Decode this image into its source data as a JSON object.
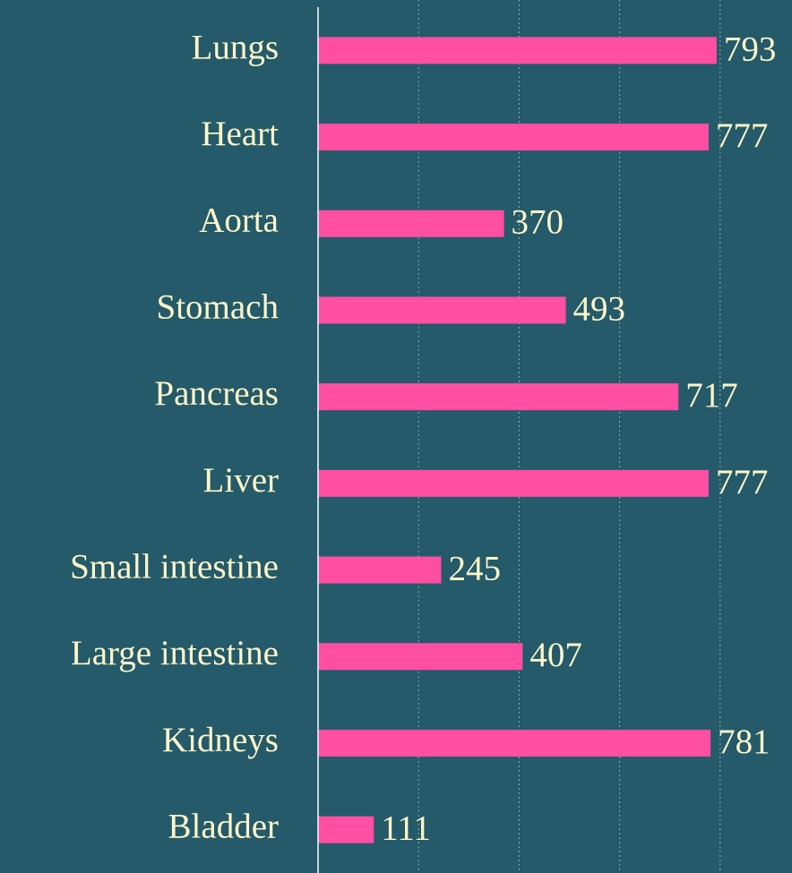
{
  "chart_data": {
    "type": "barh",
    "categories": [
      "Lungs",
      "Heart",
      "Aorta",
      "Stomach",
      "Pancreas",
      "Liver",
      "Small intestine",
      "Large intestine",
      "Kidneys",
      "Bladder"
    ],
    "values": [
      793,
      777,
      370,
      493,
      717,
      777,
      245,
      407,
      781,
      111
    ],
    "color": "#ff4fa3",
    "xlim": [
      0,
      943
    ],
    "xticks": [
      0,
      200,
      400,
      600,
      800
    ],
    "grid": true
  }
}
